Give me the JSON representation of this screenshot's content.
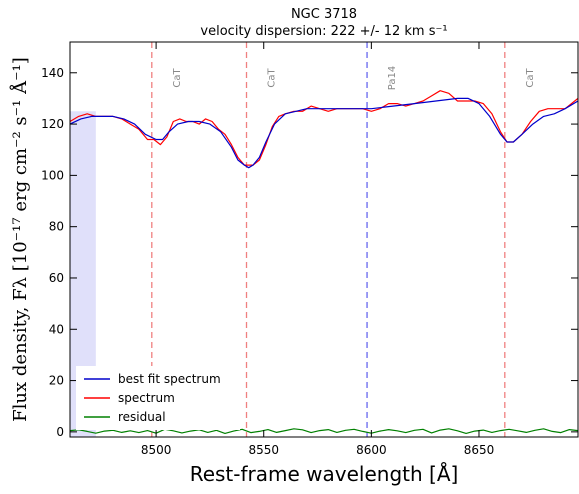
{
  "chart_data": {
    "type": "line",
    "title": "NGC 3718",
    "subtitle": "velocity dispersion: 222 +/- 12 km s⁻¹",
    "xlabel": "Rest-frame wavelength [Å]",
    "ylabel": "Flux density, Fλ [10⁻¹⁷ erg cm⁻² s⁻¹ Å⁻¹]",
    "xlim": [
      8460,
      8696
    ],
    "ylim": [
      -2,
      152
    ],
    "xticks": [
      8500,
      8550,
      8600,
      8650
    ],
    "yticks": [
      0,
      20,
      40,
      60,
      80,
      100,
      120,
      140
    ],
    "grid": false,
    "legend": {
      "placement": "bottom-left",
      "entries": [
        "best fit spectrum",
        "spectrum",
        "residual"
      ]
    },
    "colors": {
      "best_fit": "#0000cc",
      "spectrum": "#ff0000",
      "residual": "#008000",
      "line_marker": "#f08080",
      "line_marker_blue": "#6666ee",
      "mask": "#e0e0fa"
    },
    "masked_region": [
      8460,
      8472
    ],
    "lines": [
      {
        "label": "CaT",
        "x": 8498,
        "color": "red"
      },
      {
        "label": "CaT",
        "x": 8542,
        "color": "red"
      },
      {
        "label": "Pa14",
        "x": 8598,
        "color": "blue"
      },
      {
        "label": "CaT",
        "x": 8662,
        "color": "red"
      }
    ],
    "series": [
      {
        "name": "best fit spectrum",
        "x": [
          8460,
          8465,
          8470,
          8475,
          8480,
          8485,
          8490,
          8495,
          8500,
          8503,
          8506,
          8510,
          8515,
          8520,
          8525,
          8530,
          8535,
          8538,
          8541,
          8543,
          8545,
          8548,
          8551,
          8555,
          8560,
          8565,
          8570,
          8580,
          8590,
          8600,
          8610,
          8620,
          8630,
          8640,
          8645,
          8650,
          8655,
          8660,
          8663,
          8666,
          8670,
          8675,
          8680,
          8685,
          8690,
          8696
        ],
        "y": [
          120,
          122,
          123,
          123,
          123,
          122,
          120,
          116,
          114,
          114,
          117,
          120,
          121,
          121,
          120,
          117,
          111,
          106,
          104,
          103,
          104,
          107,
          113,
          120,
          124,
          125,
          126,
          126,
          126,
          126,
          127,
          128,
          129,
          130,
          130,
          128,
          123,
          116,
          113,
          113,
          116,
          120,
          123,
          124,
          126,
          129
        ]
      },
      {
        "name": "spectrum",
        "x": [
          8460,
          8464,
          8468,
          8472,
          8476,
          8480,
          8484,
          8488,
          8492,
          8496,
          8499,
          8502,
          8505,
          8508,
          8511,
          8514,
          8517,
          8520,
          8523,
          8526,
          8529,
          8532,
          8535,
          8538,
          8541,
          8543,
          8545,
          8548,
          8551,
          8554,
          8557,
          8560,
          8564,
          8568,
          8572,
          8576,
          8580,
          8584,
          8588,
          8592,
          8596,
          8600,
          8604,
          8608,
          8612,
          8616,
          8620,
          8624,
          8628,
          8632,
          8636,
          8640,
          8644,
          8648,
          8652,
          8656,
          8660,
          8663,
          8666,
          8670,
          8674,
          8678,
          8682,
          8686,
          8690,
          8696
        ],
        "y": [
          121,
          123,
          124,
          123,
          123,
          123,
          122,
          120,
          118,
          114,
          114,
          112,
          115,
          121,
          122,
          121,
          121,
          120,
          122,
          121,
          118,
          116,
          112,
          107,
          104,
          104,
          104,
          106,
          112,
          119,
          123,
          124,
          125,
          125,
          127,
          126,
          125,
          126,
          126,
          126,
          126,
          125,
          126,
          128,
          128,
          127,
          128,
          129,
          131,
          133,
          132,
          129,
          129,
          129,
          128,
          124,
          117,
          113,
          113,
          116,
          121,
          125,
          126,
          126,
          126,
          130
        ]
      },
      {
        "name": "residual",
        "x": [
          8460,
          8464,
          8468,
          8472,
          8476,
          8480,
          8484,
          8488,
          8492,
          8496,
          8500,
          8504,
          8508,
          8512,
          8516,
          8520,
          8524,
          8528,
          8532,
          8536,
          8540,
          8544,
          8548,
          8552,
          8556,
          8560,
          8564,
          8568,
          8572,
          8576,
          8580,
          8584,
          8588,
          8592,
          8596,
          8600,
          8604,
          8608,
          8612,
          8616,
          8620,
          8624,
          8628,
          8632,
          8636,
          8640,
          8644,
          8648,
          8652,
          8656,
          8660,
          8664,
          8668,
          8672,
          8676,
          8680,
          8684,
          8688,
          8692,
          8696
        ],
        "y": [
          0.5,
          0.8,
          0.2,
          -0.5,
          0.3,
          0.6,
          -0.2,
          0.4,
          -0.3,
          0.5,
          -0.5,
          1.0,
          0.4,
          -0.4,
          0.3,
          0.8,
          -0.2,
          0.6,
          -0.6,
          0.3,
          1.0,
          -0.3,
          0.2,
          0.9,
          -0.2,
          0.5,
          1.2,
          0.8,
          -0.3,
          0.5,
          0.9,
          -0.2,
          0.6,
          1.0,
          0.2,
          -0.5,
          0.3,
          0.9,
          0.4,
          -0.3,
          0.6,
          1.0,
          -0.4,
          0.7,
          1.2,
          0.4,
          -0.6,
          0.3,
          0.7,
          -0.2,
          0.5,
          1.0,
          0.4,
          -0.2,
          0.6,
          1.2,
          0.2,
          -0.3,
          0.9,
          0.5
        ]
      }
    ]
  }
}
